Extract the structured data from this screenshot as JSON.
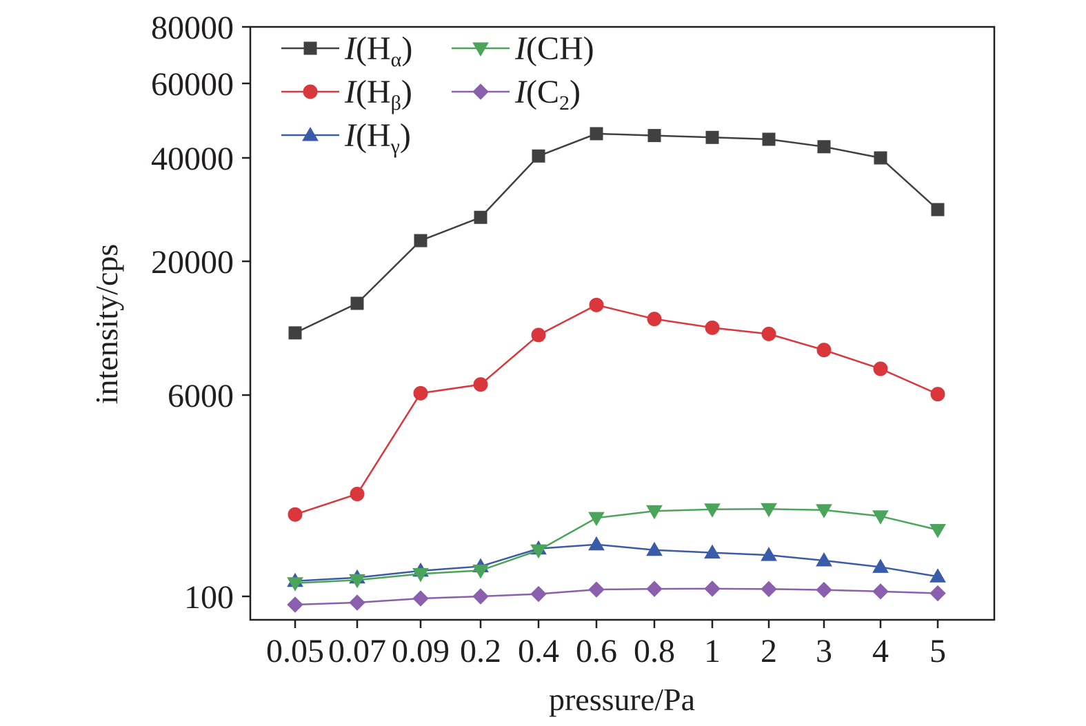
{
  "chart_data": {
    "type": "line",
    "xlabel": "pressure/Pa",
    "ylabel": "intensity/cps",
    "y_scale": "nonlinear (ticks at 100, 6000, 20000, 40000, 60000, 80000)",
    "categories": [
      "0.05",
      "0.07",
      "0.09",
      "0.2",
      "0.4",
      "0.6",
      "0.8",
      "1",
      "2",
      "3",
      "4",
      "5"
    ],
    "y_ticks": [
      100,
      6000,
      20000,
      40000,
      60000,
      80000
    ],
    "legend_position": "top-left, two columns",
    "series": [
      {
        "name": "I(Hα)",
        "name_base": "I",
        "name_sub": "α",
        "name_species": "H",
        "color": "#404040",
        "marker": "square",
        "values": [
          10500,
          13700,
          24000,
          28500,
          40500,
          46500,
          46000,
          45500,
          45000,
          43000,
          40000,
          30000
        ]
      },
      {
        "name": "I(Hβ)",
        "name_base": "I",
        "name_sub": "β",
        "name_species": "H",
        "color": "#d9373b",
        "marker": "circle",
        "values": [
          2500,
          3100,
          6100,
          6600,
          10300,
          13500,
          11900,
          11000,
          10400,
          9000,
          7600,
          6050
        ]
      },
      {
        "name": "I(Hγ)",
        "name_base": "I",
        "name_sub": "γ",
        "name_species": "H",
        "color": "#3a5ba8",
        "marker": "triangle-up",
        "values": [
          550,
          650,
          850,
          980,
          1500,
          1620,
          1460,
          1380,
          1310,
          1150,
          960,
          680
        ]
      },
      {
        "name": "I(CH)",
        "name_base": "I",
        "name_sub": "",
        "name_species": "CH",
        "color": "#4aa55a",
        "marker": "triangle-down",
        "values": [
          490,
          580,
          760,
          860,
          1450,
          2400,
          2600,
          2650,
          2660,
          2630,
          2450,
          2050
        ]
      },
      {
        "name": "I(C2)",
        "name_base": "I",
        "name_sub": "2",
        "name_species": "C",
        "color": "#8a5fad",
        "marker": "diamond",
        "values": [
          80,
          85,
          95,
          100,
          170,
          300,
          320,
          325,
          315,
          290,
          245,
          190
        ]
      }
    ]
  }
}
